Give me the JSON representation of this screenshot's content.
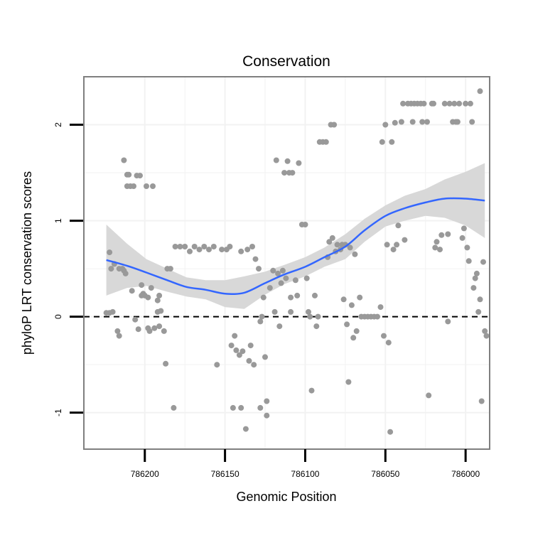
{
  "chart_data": {
    "type": "scatter",
    "title": "Conservation",
    "xlabel": "Genomic Position",
    "ylabel": "phyloP LRT conservation scores",
    "x_reversed": true,
    "xlim": [
      786238,
      785985
    ],
    "ylim": [
      -1.38,
      2.5
    ],
    "x_ticks": [
      786200,
      786150,
      786100,
      786050,
      786000
    ],
    "x_tick_labels": [
      "786200",
      "786150",
      "786100",
      "786050",
      "786000"
    ],
    "y_ticks": [
      -1,
      0,
      1,
      2
    ],
    "y_tick_labels": [
      "-1",
      "0",
      "1",
      "2"
    ],
    "reference_line": {
      "y": 0,
      "style": "dashed"
    },
    "grid": true,
    "colors": {
      "points": "#999999",
      "smooth": "#3366ff",
      "ribbon": "#d6d6d6",
      "panel_border": "#7f7f7f",
      "grid": "#f2f2f2"
    },
    "series": [
      {
        "type": "scatter",
        "points": [
          [
            786224,
            0.04
          ],
          [
            786222,
            0.67
          ],
          [
            786222,
            0.04
          ],
          [
            786221,
            0.5
          ],
          [
            786220,
            0.05
          ],
          [
            786219,
            0.55
          ],
          [
            786217,
            -0.15
          ],
          [
            786216,
            -0.2
          ],
          [
            786216,
            0.5
          ],
          [
            786214,
            0.5
          ],
          [
            786213,
            1.63
          ],
          [
            786213,
            0.48
          ],
          [
            786212,
            0.45
          ],
          [
            786211,
            1.48
          ],
          [
            786211,
            1.36
          ],
          [
            786210,
            1.48
          ],
          [
            786209,
            1.36
          ],
          [
            786207,
            1.36
          ],
          [
            786208,
            0.27
          ],
          [
            786206,
            -0.03
          ],
          [
            786205,
            1.47
          ],
          [
            786204,
            -0.13
          ],
          [
            786203,
            1.47
          ],
          [
            786202,
            0.33
          ],
          [
            786202,
            0.22
          ],
          [
            786201,
            0.24
          ],
          [
            786200,
            0.22
          ],
          [
            786199,
            1.36
          ],
          [
            786198,
            0.2
          ],
          [
            786198,
            -0.12
          ],
          [
            786197,
            -0.15
          ],
          [
            786196,
            0.3
          ],
          [
            786195,
            1.36
          ],
          [
            786194,
            -0.12
          ],
          [
            786192,
            0.17
          ],
          [
            786192,
            0.05
          ],
          [
            786191,
            -0.1
          ],
          [
            786190,
            0.06
          ],
          [
            786191,
            0.22
          ],
          [
            786188,
            -0.15
          ],
          [
            786187,
            -0.49
          ],
          [
            786186,
            0.5
          ],
          [
            786184,
            0.5
          ],
          [
            786182,
            -0.95
          ],
          [
            786181,
            0.73
          ],
          [
            786178,
            0.73
          ],
          [
            786175,
            0.73
          ],
          [
            786172,
            0.68
          ],
          [
            786169,
            0.73
          ],
          [
            786166,
            0.7
          ],
          [
            786163,
            0.73
          ],
          [
            786160,
            0.7
          ],
          [
            786157,
            0.73
          ],
          [
            786155,
            -0.5
          ],
          [
            786152,
            0.7
          ],
          [
            786149,
            0.7
          ],
          [
            786147,
            0.73
          ],
          [
            786146,
            -0.3
          ],
          [
            786145,
            -0.95
          ],
          [
            786144,
            -0.2
          ],
          [
            786143,
            -0.35
          ],
          [
            786140,
            0.68
          ],
          [
            786141,
            -0.4
          ],
          [
            786140,
            -0.95
          ],
          [
            786139,
            -0.36
          ],
          [
            786137,
            -1.17
          ],
          [
            786136,
            0.7
          ],
          [
            786135,
            -0.46
          ],
          [
            786134,
            -0.3
          ],
          [
            786133,
            0.73
          ],
          [
            786132,
            -0.5
          ],
          [
            786131,
            0.6
          ],
          [
            786129,
            0.5
          ],
          [
            786128,
            -0.95
          ],
          [
            786128,
            -0.05
          ],
          [
            786127,
            0.0
          ],
          [
            786126,
            0.2
          ],
          [
            786125,
            -0.42
          ],
          [
            786124,
            -0.88
          ],
          [
            786124,
            -1.03
          ],
          [
            786122,
            0.3
          ],
          [
            786120,
            0.48
          ],
          [
            786119,
            0.05
          ],
          [
            786118,
            1.63
          ],
          [
            786117,
            0.45
          ],
          [
            786116,
            -0.1
          ],
          [
            786115,
            0.35
          ],
          [
            786114,
            0.48
          ],
          [
            786113,
            1.5
          ],
          [
            786112,
            0.4
          ],
          [
            786111,
            1.62
          ],
          [
            786110,
            1.5
          ],
          [
            786109,
            0.2
          ],
          [
            786109,
            0.05
          ],
          [
            786108,
            1.5
          ],
          [
            786106,
            0.38
          ],
          [
            786105,
            0.22
          ],
          [
            786104,
            1.6
          ],
          [
            786102,
            0.96
          ],
          [
            786100,
            0.96
          ],
          [
            786099,
            0.4
          ],
          [
            786098,
            0.05
          ],
          [
            786097,
            0.0
          ],
          [
            786096,
            -0.77
          ],
          [
            786094,
            0.22
          ],
          [
            786093,
            -0.1
          ],
          [
            786092,
            0.0
          ],
          [
            786091,
            1.82
          ],
          [
            786089,
            1.82
          ],
          [
            786087,
            1.82
          ],
          [
            786086,
            0.62
          ],
          [
            786085,
            0.78
          ],
          [
            786084,
            2.0
          ],
          [
            786083,
            0.82
          ],
          [
            786082,
            2.0
          ],
          [
            786081,
            0.68
          ],
          [
            786080,
            0.75
          ],
          [
            786078,
            0.7
          ],
          [
            786077,
            0.75
          ],
          [
            786076,
            0.18
          ],
          [
            786075,
            0.75
          ],
          [
            786074,
            -0.08
          ],
          [
            786073,
            -0.68
          ],
          [
            786072,
            0.72
          ],
          [
            786071,
            0.12
          ],
          [
            786070,
            -0.22
          ],
          [
            786069,
            0.65
          ],
          [
            786068,
            -0.15
          ],
          [
            786066,
            0.2
          ],
          [
            786065,
            0.0
          ],
          [
            786063,
            0.0
          ],
          [
            786061,
            0.0
          ],
          [
            786059,
            0.0
          ],
          [
            786057,
            0.0
          ],
          [
            786055,
            0.0
          ],
          [
            786053,
            0.1
          ],
          [
            786052,
            1.82
          ],
          [
            786051,
            -0.2
          ],
          [
            786050,
            2.0
          ],
          [
            786049,
            0.75
          ],
          [
            786048,
            -0.27
          ],
          [
            786047,
            -1.2
          ],
          [
            786046,
            1.82
          ],
          [
            786045,
            0.7
          ],
          [
            786044,
            2.02
          ],
          [
            786043,
            0.75
          ],
          [
            786042,
            0.95
          ],
          [
            786040,
            2.03
          ],
          [
            786039,
            2.22
          ],
          [
            786038,
            0.8
          ],
          [
            786036,
            2.22
          ],
          [
            786034,
            2.22
          ],
          [
            786033,
            2.03
          ],
          [
            786032,
            2.22
          ],
          [
            786030,
            2.22
          ],
          [
            786028,
            2.22
          ],
          [
            786027,
            2.03
          ],
          [
            786026,
            2.22
          ],
          [
            786024,
            2.03
          ],
          [
            786023,
            -0.82
          ],
          [
            786021,
            2.22
          ],
          [
            786020,
            2.22
          ],
          [
            786019,
            0.72
          ],
          [
            786018,
            0.78
          ],
          [
            786016,
            0.7
          ],
          [
            786015,
            0.85
          ],
          [
            786013,
            2.22
          ],
          [
            786011,
            0.86
          ],
          [
            786011,
            -0.05
          ],
          [
            786010,
            2.22
          ],
          [
            786008,
            2.03
          ],
          [
            786007,
            2.22
          ],
          [
            786006,
            2.03
          ],
          [
            786005,
            2.03
          ],
          [
            786004,
            2.22
          ],
          [
            786002,
            0.82
          ],
          [
            786001,
            0.92
          ],
          [
            786000,
            2.22
          ],
          [
            785999,
            0.72
          ],
          [
            785998,
            0.58
          ],
          [
            785997,
            2.22
          ],
          [
            785996,
            2.03
          ],
          [
            785995,
            0.3
          ],
          [
            785994,
            0.4
          ],
          [
            785993,
            0.45
          ],
          [
            785992,
            0.05
          ],
          [
            785991,
            2.35
          ],
          [
            785991,
            0.18
          ],
          [
            785990,
            -0.88
          ],
          [
            785989,
            0.57
          ],
          [
            785988,
            -0.15
          ],
          [
            785987,
            -0.2
          ]
        ]
      },
      {
        "type": "smooth",
        "x": [
          786224,
          786211,
          786199,
          786186,
          786174,
          786162,
          786150,
          786138,
          786125,
          786113,
          786100,
          786088,
          786075,
          786063,
          786050,
          786038,
          786025,
          786013,
          786000,
          785988
        ],
        "y": [
          0.59,
          0.53,
          0.46,
          0.38,
          0.31,
          0.28,
          0.24,
          0.25,
          0.35,
          0.44,
          0.52,
          0.62,
          0.73,
          0.9,
          1.05,
          1.13,
          1.19,
          1.23,
          1.23,
          1.21
        ],
        "lower": [
          0.22,
          0.3,
          0.32,
          0.26,
          0.21,
          0.18,
          0.1,
          0.08,
          0.23,
          0.34,
          0.42,
          0.52,
          0.6,
          0.78,
          0.94,
          1.0,
          1.05,
          1.03,
          0.95,
          0.82
        ],
        "upper": [
          0.96,
          0.76,
          0.6,
          0.5,
          0.41,
          0.38,
          0.38,
          0.42,
          0.47,
          0.54,
          0.62,
          0.72,
          0.86,
          1.02,
          1.16,
          1.26,
          1.33,
          1.43,
          1.51,
          1.6
        ]
      }
    ]
  }
}
